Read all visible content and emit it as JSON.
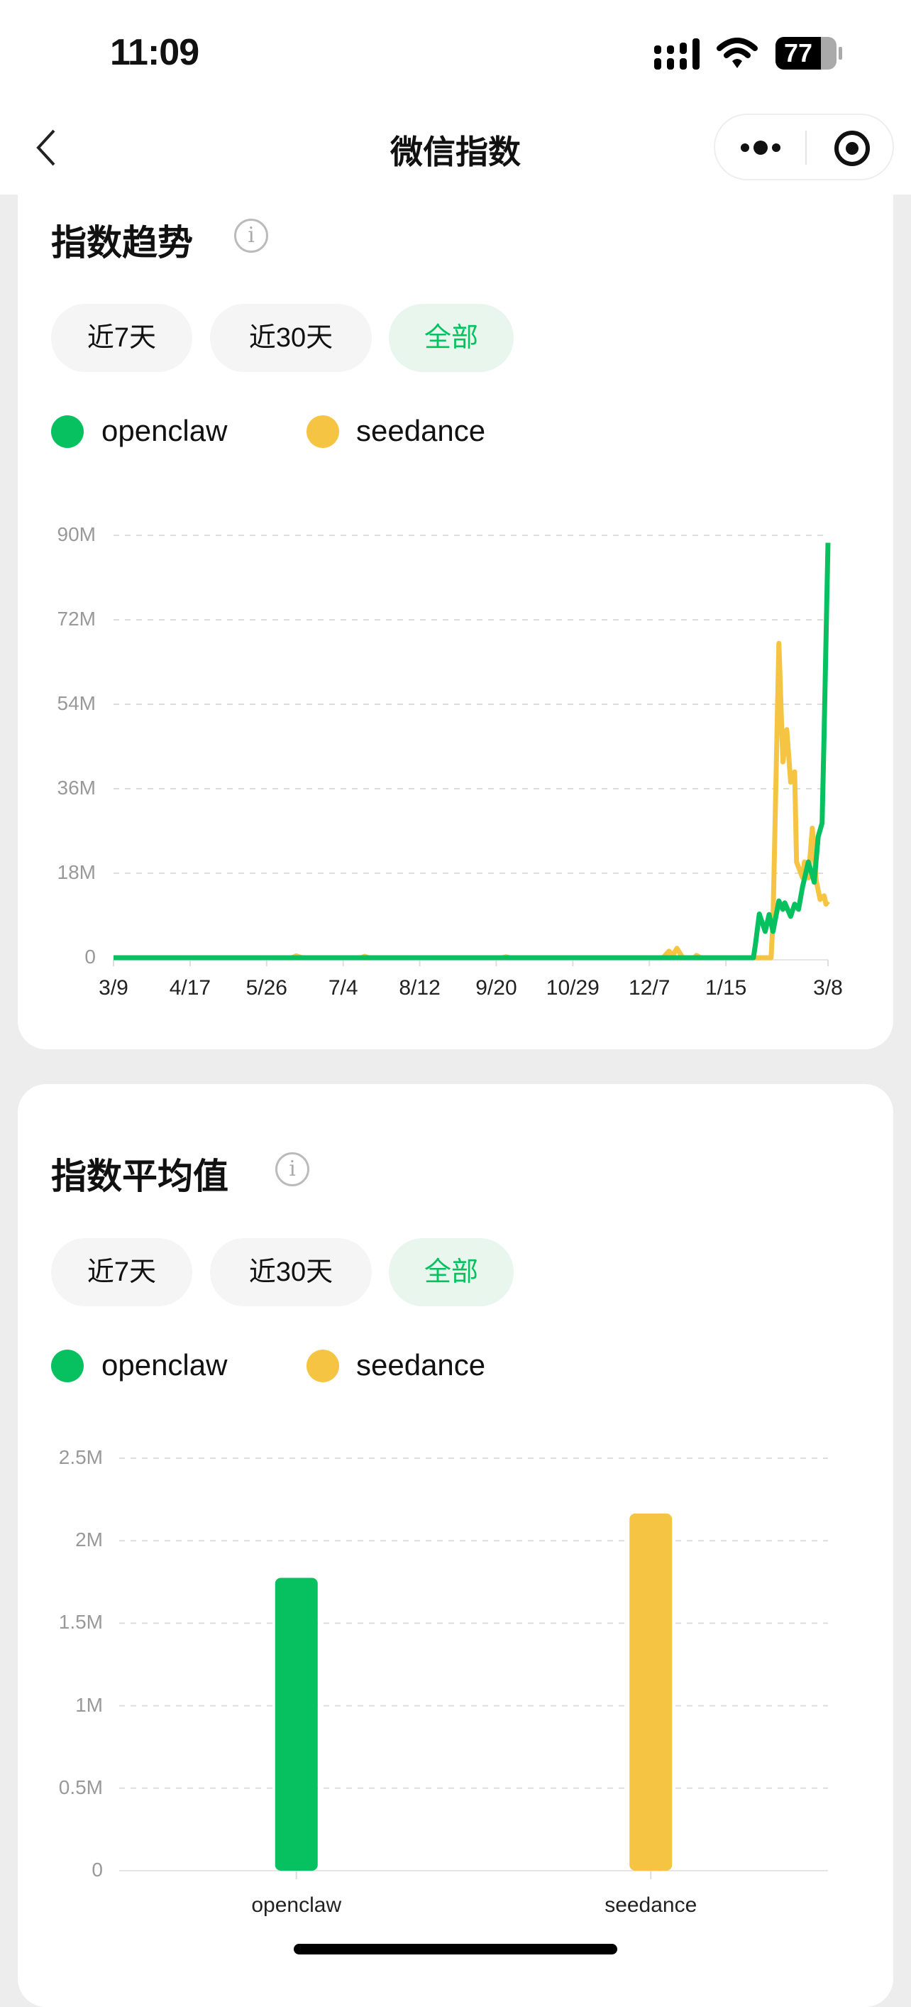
{
  "status_bar": {
    "time": "11:09",
    "battery": "77",
    "icons": [
      "signal-icon",
      "wifi-icon",
      "battery-icon"
    ]
  },
  "nav": {
    "title": "微信指数",
    "back_icon": "chevron-left-icon",
    "more_icon": "more-dots-icon",
    "close_icon": "target-circle-icon"
  },
  "colors": {
    "openclaw": "#07c160",
    "seedance": "#f5c443",
    "active_pill_bg": "#e8f6ee"
  },
  "trend": {
    "title": "指数趋势",
    "tabs": [
      {
        "label": "近7天"
      },
      {
        "label": "近30天"
      },
      {
        "label": "全部",
        "active": true
      }
    ],
    "legend": [
      {
        "label": "openclaw"
      },
      {
        "label": "seedance"
      }
    ]
  },
  "average": {
    "title": "指数平均值",
    "tabs": [
      {
        "label": "近7天"
      },
      {
        "label": "近30天"
      },
      {
        "label": "全部",
        "active": true
      }
    ],
    "legend": [
      {
        "label": "openclaw"
      },
      {
        "label": "seedance"
      }
    ]
  },
  "chart_data": [
    {
      "type": "line",
      "x_start": "3/9",
      "x_end": "3/8",
      "x_ticks": [
        "3/9",
        "4/17",
        "5/26",
        "7/4",
        "8/12",
        "9/20",
        "10/29",
        "12/7",
        "1/15",
        "3/8"
      ],
      "y_ticks": [
        "0",
        "18M",
        "36M",
        "54M",
        "72M",
        "90M"
      ],
      "ylim": [
        0,
        90000000
      ],
      "grid": true,
      "legend": "top-left",
      "series": [
        {
          "name": "openclaw",
          "points": [
            [
              "3/9",
              0
            ],
            [
              "1/29",
              0
            ],
            [
              "1/30",
              2700000
            ],
            [
              "2/1",
              9300000
            ],
            [
              "2/4",
              5600000
            ],
            [
              "2/6",
              9200000
            ],
            [
              "2/8",
              5600000
            ],
            [
              "2/11",
              12100000
            ],
            [
              "2/13",
              10300000
            ],
            [
              "2/14",
              11700000
            ],
            [
              "2/17",
              8800000
            ],
            [
              "2/19",
              11400000
            ],
            [
              "2/21",
              10300000
            ],
            [
              "2/23",
              15000000
            ],
            [
              "2/26",
              20400000
            ],
            [
              "3/1",
              16100000
            ],
            [
              "3/3",
              25800000
            ],
            [
              "3/5",
              28700000
            ],
            [
              "3/6",
              47500000
            ],
            [
              "3/8",
              88400000
            ]
          ]
        },
        {
          "name": "seedance",
          "points": [
            [
              "3/9",
              0
            ],
            [
              "6/8",
              0
            ],
            [
              "6/10",
              400000
            ],
            [
              "6/13",
              0
            ],
            [
              "7/13",
              0
            ],
            [
              "7/15",
              300000
            ],
            [
              "7/17",
              0
            ],
            [
              "9/23",
              0
            ],
            [
              "9/25",
              200000
            ],
            [
              "9/27",
              0
            ],
            [
              "12/14",
              0
            ],
            [
              "12/17",
              1400000
            ],
            [
              "12/19",
              500000
            ],
            [
              "12/21",
              2000000
            ],
            [
              "12/24",
              0
            ],
            [
              "12/30",
              0
            ],
            [
              "12/31",
              500000
            ],
            [
              "1/2",
              0
            ],
            [
              "2/7",
              0
            ],
            [
              "2/8",
              8000000
            ],
            [
              "2/11",
              67000000
            ],
            [
              "2/13",
              41700000
            ],
            [
              "2/15",
              48600000
            ],
            [
              "2/17",
              37400000
            ],
            [
              "2/19",
              39600000
            ],
            [
              "2/20",
              20400000
            ],
            [
              "2/23",
              17100000
            ],
            [
              "2/24",
              20400000
            ],
            [
              "2/26",
              17000000
            ],
            [
              "2/28",
              27600000
            ],
            [
              "3/2",
              16400000
            ],
            [
              "3/4",
              12400000
            ],
            [
              "3/6",
              13200000
            ],
            [
              "3/7",
              11400000
            ],
            [
              "3/8",
              12000000
            ]
          ]
        }
      ]
    },
    {
      "type": "bar",
      "categories": [
        "openclaw",
        "seedance"
      ],
      "values": [
        1775000,
        2165000
      ],
      "y_ticks": [
        "0",
        "0.5M",
        "1M",
        "1.5M",
        "2M",
        "2.5M"
      ],
      "ylim": [
        0,
        2500000
      ],
      "grid": true,
      "legend": "top-left"
    }
  ]
}
